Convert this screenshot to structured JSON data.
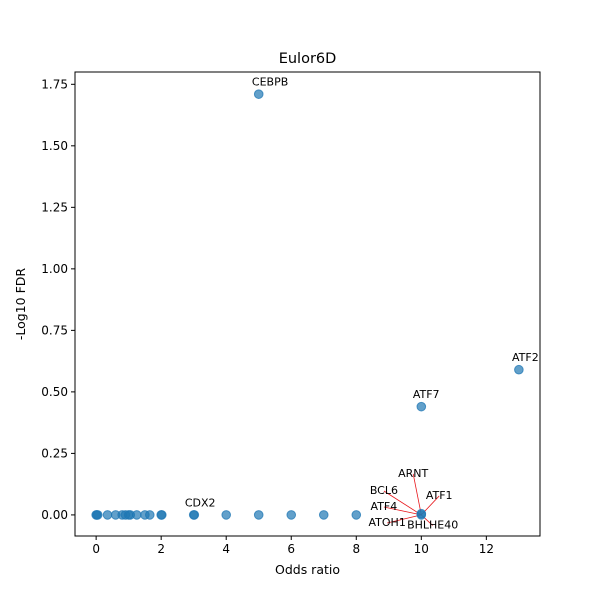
{
  "chart_data": {
    "type": "scatter",
    "title": "Eulor6D",
    "xlabel": "Odds ratio",
    "ylabel": "-Log10 FDR",
    "xlim": [
      -0.65,
      13.65
    ],
    "ylim": [
      -0.0857,
      1.8
    ],
    "xticks": [
      0,
      2,
      4,
      6,
      8,
      10,
      12
    ],
    "xtick_labels": [
      "0",
      "2",
      "4",
      "6",
      "8",
      "10",
      "12"
    ],
    "yticks": [
      0,
      0.25,
      0.5,
      0.75,
      1.0,
      1.25,
      1.5,
      1.75
    ],
    "ytick_labels": [
      "0.00",
      "0.25",
      "0.50",
      "0.75",
      "1.00",
      "1.25",
      "1.50",
      "1.75"
    ],
    "grid": false,
    "legend": null,
    "point_color": "#1f77b4",
    "leader_color": "#e8161b",
    "points": [
      {
        "x": 0,
        "y": 0
      },
      {
        "x": 0.02,
        "y": 0
      },
      {
        "x": 0.05,
        "y": 0
      },
      {
        "x": 0.35,
        "y": 0
      },
      {
        "x": 0.6,
        "y": 0
      },
      {
        "x": 0.8,
        "y": 0
      },
      {
        "x": 0.9,
        "y": 0
      },
      {
        "x": 1.0,
        "y": 0
      },
      {
        "x": 1.05,
        "y": 0
      },
      {
        "x": 1.25,
        "y": 0
      },
      {
        "x": 1.5,
        "y": 0
      },
      {
        "x": 1.65,
        "y": 0
      },
      {
        "x": 2.0,
        "y": 0
      },
      {
        "x": 2.02,
        "y": 0
      },
      {
        "x": 3.0,
        "y": 0
      },
      {
        "x": 3.02,
        "y": 0
      },
      {
        "x": 4.0,
        "y": 0
      },
      {
        "x": 5.0,
        "y": 0
      },
      {
        "x": 6.0,
        "y": 0
      },
      {
        "x": 7.0,
        "y": 0
      },
      {
        "x": 8.0,
        "y": 0
      },
      {
        "x": 10.0,
        "y": 0
      },
      {
        "x": 10.0,
        "y": 0.005
      },
      {
        "x": 5.0,
        "y": 1.71
      },
      {
        "x": 13.0,
        "y": 0.59
      },
      {
        "x": 10.0,
        "y": 0.44
      }
    ],
    "annotations": [
      {
        "text": "CEBPB",
        "x": 5.0,
        "y": 1.71,
        "tx": 5.35,
        "ty": 1.745,
        "anchor": "middle",
        "leader": false
      },
      {
        "text": "ATF2",
        "x": 13.0,
        "y": 0.59,
        "tx": 13.2,
        "ty": 0.625,
        "anchor": "middle",
        "leader": false
      },
      {
        "text": "ATF7",
        "x": 10.0,
        "y": 0.44,
        "tx": 10.15,
        "ty": 0.475,
        "anchor": "middle",
        "leader": false
      },
      {
        "text": "CDX2",
        "x": 3.0,
        "y": 0,
        "tx": 3.2,
        "ty": 0.035,
        "anchor": "middle",
        "leader": false
      },
      {
        "text": "ARNT",
        "x": 10.0,
        "y": 0,
        "tx": 9.75,
        "ty": 0.155,
        "anchor": "middle",
        "leader": true
      },
      {
        "text": "BCL6",
        "x": 10.0,
        "y": 0,
        "tx": 8.85,
        "ty": 0.085,
        "anchor": "middle",
        "leader": true
      },
      {
        "text": "ATF1",
        "x": 10.0,
        "y": 0,
        "tx": 10.55,
        "ty": 0.065,
        "anchor": "middle",
        "leader": true
      },
      {
        "text": "ATF4",
        "x": 10.0,
        "y": 0,
        "tx": 8.85,
        "ty": 0.02,
        "anchor": "middle",
        "leader": true
      },
      {
        "text": "ATOH1",
        "x": 10.0,
        "y": 0,
        "tx": 8.95,
        "ty": -0.045,
        "anchor": "middle",
        "leader": true
      },
      {
        "text": "BHLHE40",
        "x": 10.0,
        "y": 0,
        "tx": 10.35,
        "ty": -0.055,
        "anchor": "middle",
        "leader": true
      }
    ]
  }
}
